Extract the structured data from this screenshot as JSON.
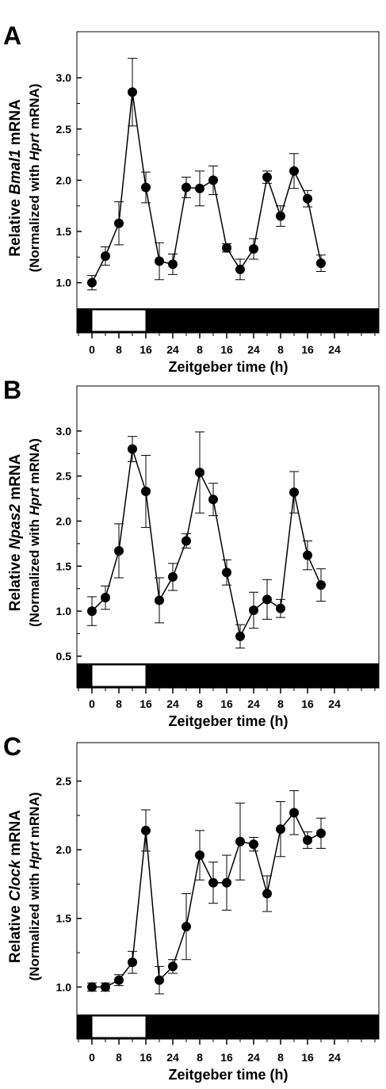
{
  "xlabel": "Zeitgeber time (h)",
  "x_tick_labels": [
    "0",
    "8",
    "16",
    "24",
    "8",
    "16",
    "24",
    "8",
    "16",
    "24"
  ],
  "light_bar": {
    "light_color": "#ffffff",
    "dark_color": "#000000"
  },
  "colors": {
    "marker": "#000000",
    "line": "#000000",
    "background": "#ffffff"
  },
  "chart_data": [
    {
      "panel_letter": "A",
      "type": "line",
      "ylabel_line1_pre": "Relative ",
      "ylabel_line1_gene": "Bmal1",
      "ylabel_line1_post": " mRNA",
      "ylabel_line2_pre": "(Normalized with ",
      "ylabel_line2_gene": "Hprt",
      "ylabel_line2_post": " mRNA)",
      "xlabel": "Zeitgeber time (h)",
      "ylim": [
        0.75,
        3.45
      ],
      "yticks": [
        "1.0",
        "1.5",
        "2.0",
        "2.5",
        "3.0"
      ],
      "ytick_values": [
        1.0,
        1.5,
        2.0,
        2.5,
        3.0
      ],
      "x": [
        0,
        4,
        8,
        12,
        16,
        20,
        24,
        28,
        32,
        36,
        40,
        44,
        48,
        52,
        56,
        60,
        64,
        68
      ],
      "values": [
        1.0,
        1.26,
        1.58,
        2.86,
        1.93,
        1.21,
        1.18,
        1.93,
        1.92,
        2.0,
        1.34,
        1.13,
        1.33,
        2.03,
        1.65,
        2.09,
        1.82,
        1.19
      ],
      "errors": [
        0.07,
        0.09,
        0.21,
        0.33,
        0.15,
        0.18,
        0.1,
        0.1,
        0.17,
        0.14,
        0.04,
        0.1,
        0.1,
        0.06,
        0.1,
        0.17,
        0.08,
        0.08
      ]
    },
    {
      "panel_letter": "B",
      "type": "line",
      "ylabel_line1_pre": "Relative ",
      "ylabel_line1_gene": "Npas2",
      "ylabel_line1_post": " mRNA",
      "ylabel_line2_pre": "(Normalized with ",
      "ylabel_line2_gene": "Hprt",
      "ylabel_line2_post": " mRNA)",
      "xlabel": "Zeitgeber time (h)",
      "ylim": [
        0.42,
        3.5
      ],
      "yticks": [
        "0.5",
        "1.0",
        "1.5",
        "2.0",
        "2.5",
        "3.0"
      ],
      "ytick_values": [
        0.5,
        1.0,
        1.5,
        2.0,
        2.5,
        3.0
      ],
      "x": [
        0,
        4,
        8,
        12,
        16,
        20,
        24,
        28,
        32,
        36,
        40,
        44,
        48,
        52,
        56,
        60,
        64,
        68
      ],
      "values": [
        1.0,
        1.15,
        1.67,
        2.8,
        2.33,
        1.12,
        1.38,
        1.78,
        2.54,
        2.24,
        1.43,
        0.72,
        1.01,
        1.13,
        1.03,
        2.32,
        1.62,
        1.29
      ],
      "errors": [
        0.16,
        0.13,
        0.3,
        0.14,
        0.4,
        0.25,
        0.15,
        0.08,
        0.45,
        0.18,
        0.14,
        0.13,
        0.2,
        0.22,
        0.1,
        0.23,
        0.16,
        0.18
      ]
    },
    {
      "panel_letter": "C",
      "type": "line",
      "ylabel_line1_pre": "Relative ",
      "ylabel_line1_gene": "Clock",
      "ylabel_line1_post": " mRNA",
      "ylabel_line2_pre": "(Normalized with ",
      "ylabel_line2_gene": "Hprt",
      "ylabel_line2_post": " mRNA)",
      "xlabel": "Zeitgeber time (h)",
      "ylim": [
        0.8,
        2.78
      ],
      "yticks": [
        "1.0",
        "1.5",
        "2.0",
        "2.5"
      ],
      "ytick_values": [
        1.0,
        1.5,
        2.0,
        2.5
      ],
      "x": [
        0,
        4,
        8,
        12,
        16,
        20,
        24,
        28,
        32,
        36,
        40,
        44,
        48,
        52,
        56,
        60,
        64,
        68
      ],
      "values": [
        1.0,
        1.0,
        1.05,
        1.18,
        2.14,
        1.05,
        1.15,
        1.44,
        1.96,
        1.76,
        1.76,
        2.06,
        2.04,
        1.68,
        2.15,
        2.27,
        2.07,
        2.12
      ],
      "errors": [
        0.03,
        0.03,
        0.04,
        0.08,
        0.15,
        0.1,
        0.05,
        0.24,
        0.18,
        0.15,
        0.2,
        0.28,
        0.05,
        0.13,
        0.2,
        0.16,
        0.06,
        0.11
      ]
    }
  ]
}
